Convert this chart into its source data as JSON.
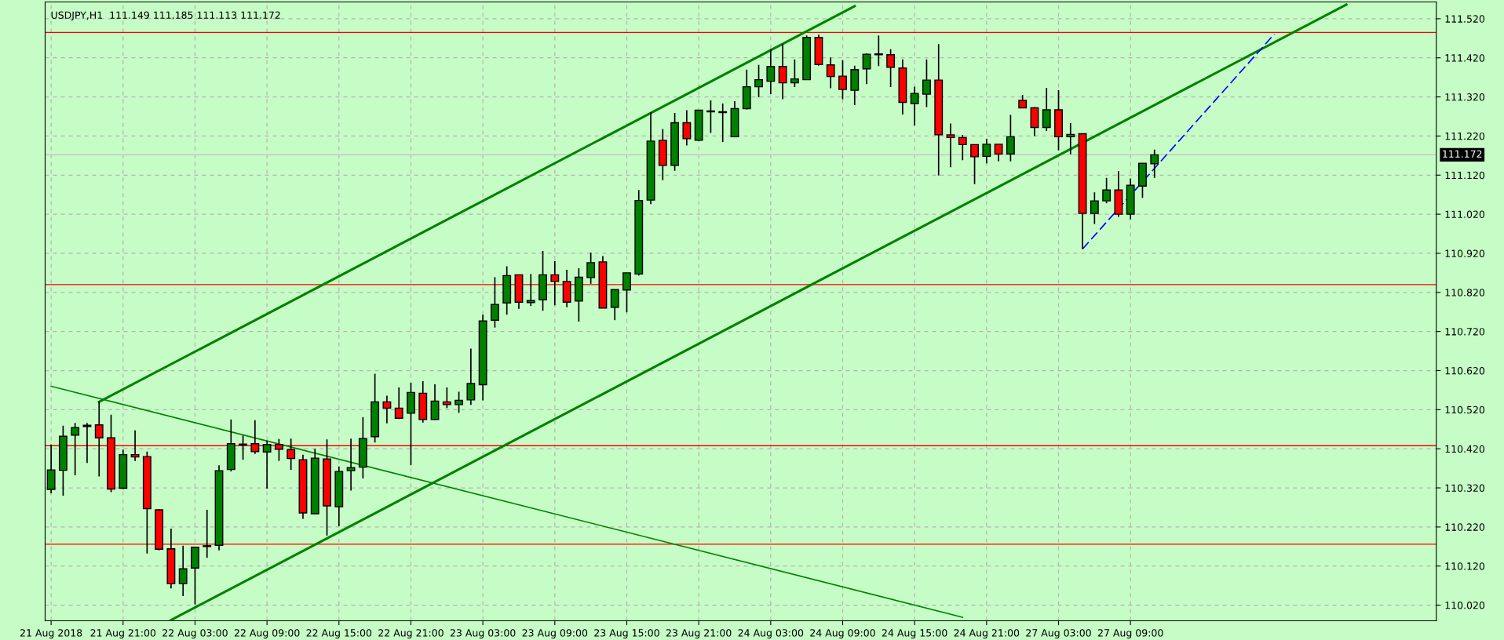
{
  "chart_data": {
    "type": "candlestick",
    "title": "USDJPY,H1  111.149 111.185 111.113 111.172",
    "categories": [
      "21 Aug 2018",
      null,
      null,
      null,
      null,
      null,
      "21 Aug 21:00",
      null,
      null,
      null,
      null,
      null,
      "22 Aug 03:00",
      null,
      null,
      null,
      null,
      null,
      "22 Aug 09:00",
      null,
      null,
      null,
      null,
      null,
      "22 Aug 15:00",
      null,
      null,
      null,
      null,
      null,
      "22 Aug 21:00",
      null,
      null,
      null,
      null,
      null,
      "23 Aug 03:00",
      null,
      null,
      null,
      null,
      null,
      "23 Aug 09:00",
      null,
      null,
      null,
      null,
      null,
      "23 Aug 15:00",
      null,
      null,
      null,
      null,
      null,
      "23 Aug 21:00",
      null,
      null,
      null,
      null,
      null,
      "24 Aug 03:00",
      null,
      null,
      null,
      null,
      null,
      "24 Aug 09:00",
      null,
      null,
      null,
      null,
      null,
      "24 Aug 15:00",
      null,
      null,
      null,
      null,
      null,
      "24 Aug 21:00",
      null,
      null,
      null,
      null,
      null,
      "27 Aug 03:00",
      null,
      null,
      null,
      null,
      null,
      "27 Aug 09:00",
      null,
      null,
      null,
      null,
      null,
      null,
      null,
      null,
      null,
      null,
      null,
      null,
      null,
      null,
      null,
      null,
      null,
      null,
      null,
      null,
      null,
      null,
      null,
      null,
      null
    ],
    "ohlc": [
      [
        110.316,
        110.431,
        110.306,
        110.366
      ],
      [
        110.365,
        110.479,
        110.3,
        110.452
      ],
      [
        110.455,
        110.486,
        110.352,
        110.474
      ],
      [
        110.477,
        110.486,
        110.384,
        110.48
      ],
      [
        110.481,
        110.54,
        110.349,
        110.448
      ],
      [
        110.448,
        110.507,
        110.309,
        110.317
      ],
      [
        110.319,
        110.418,
        110.317,
        110.405
      ],
      [
        110.405,
        110.467,
        110.389,
        110.399
      ],
      [
        110.4,
        110.413,
        110.152,
        110.267
      ],
      [
        110.264,
        110.266,
        110.16,
        110.163
      ],
      [
        110.164,
        110.216,
        110.063,
        110.075
      ],
      [
        110.075,
        110.172,
        110.043,
        110.113
      ],
      [
        110.115,
        110.168,
        110.022,
        110.168
      ],
      [
        110.17,
        110.264,
        110.141,
        110.172
      ],
      [
        110.173,
        110.378,
        110.16,
        110.364
      ],
      [
        110.367,
        110.495,
        110.362,
        110.433
      ],
      [
        110.43,
        110.454,
        110.392,
        110.432
      ],
      [
        110.433,
        110.493,
        110.407,
        110.413
      ],
      [
        110.412,
        110.441,
        110.318,
        110.431
      ],
      [
        110.431,
        110.445,
        110.389,
        110.419
      ],
      [
        110.418,
        110.446,
        110.366,
        110.395
      ],
      [
        110.392,
        110.405,
        110.241,
        110.256
      ],
      [
        110.254,
        110.42,
        110.253,
        110.396
      ],
      [
        110.394,
        110.444,
        110.198,
        110.274
      ],
      [
        110.272,
        110.375,
        110.222,
        110.362
      ],
      [
        110.364,
        110.446,
        110.313,
        110.372
      ],
      [
        110.373,
        110.501,
        110.344,
        110.446
      ],
      [
        110.451,
        110.612,
        110.436,
        110.54
      ],
      [
        110.54,
        110.556,
        110.485,
        110.524
      ],
      [
        110.524,
        110.577,
        110.496,
        110.498
      ],
      [
        110.511,
        110.589,
        110.378,
        110.564
      ],
      [
        110.562,
        110.593,
        110.487,
        110.495
      ],
      [
        110.495,
        110.585,
        110.493,
        110.542
      ],
      [
        110.54,
        110.577,
        110.524,
        110.533
      ],
      [
        110.533,
        110.566,
        110.512,
        110.544
      ],
      [
        110.545,
        110.676,
        110.532,
        110.587
      ],
      [
        110.584,
        110.763,
        110.544,
        110.747
      ],
      [
        110.749,
        110.859,
        110.73,
        110.789
      ],
      [
        110.793,
        110.887,
        110.763,
        110.863
      ],
      [
        110.865,
        110.865,
        110.778,
        110.795
      ],
      [
        110.794,
        110.867,
        110.785,
        110.799
      ],
      [
        110.801,
        110.926,
        110.773,
        110.865
      ],
      [
        110.865,
        110.9,
        110.787,
        110.848
      ],
      [
        110.848,
        110.878,
        110.782,
        110.795
      ],
      [
        110.798,
        110.882,
        110.745,
        110.859
      ],
      [
        110.858,
        110.922,
        110.842,
        110.896
      ],
      [
        110.898,
        110.913,
        110.78,
        110.78
      ],
      [
        110.782,
        110.827,
        110.749,
        110.827
      ],
      [
        110.826,
        110.87,
        110.769,
        110.87
      ],
      [
        110.867,
        111.082,
        110.863,
        111.055
      ],
      [
        111.056,
        111.281,
        111.046,
        111.207
      ],
      [
        111.209,
        111.238,
        111.107,
        111.145
      ],
      [
        111.145,
        111.279,
        111.131,
        111.254
      ],
      [
        111.254,
        111.286,
        111.196,
        111.213
      ],
      [
        111.209,
        111.286,
        111.207,
        111.286
      ],
      [
        111.282,
        111.311,
        111.228,
        111.284
      ],
      [
        111.28,
        111.303,
        111.205,
        111.282
      ],
      [
        111.218,
        111.309,
        111.218,
        111.29
      ],
      [
        111.29,
        111.39,
        111.288,
        111.346
      ],
      [
        111.346,
        111.402,
        111.319,
        111.364
      ],
      [
        111.36,
        111.442,
        111.327,
        111.398
      ],
      [
        111.398,
        111.455,
        111.314,
        111.356
      ],
      [
        111.356,
        111.416,
        111.345,
        111.366
      ],
      [
        111.364,
        111.477,
        111.364,
        111.472
      ],
      [
        111.472,
        111.479,
        111.4,
        111.403
      ],
      [
        111.402,
        111.421,
        111.342,
        111.372
      ],
      [
        111.373,
        111.414,
        111.314,
        111.339
      ],
      [
        111.337,
        111.4,
        111.299,
        111.39
      ],
      [
        111.392,
        111.431,
        111.353,
        111.429
      ],
      [
        111.428,
        111.477,
        111.399,
        111.43
      ],
      [
        111.428,
        111.442,
        111.345,
        111.396
      ],
      [
        111.394,
        111.416,
        111.275,
        111.306
      ],
      [
        111.303,
        111.346,
        111.247,
        111.329
      ],
      [
        111.327,
        111.416,
        111.294,
        111.363
      ],
      [
        111.363,
        111.455,
        111.119,
        111.223
      ],
      [
        111.223,
        111.252,
        111.14,
        111.216
      ],
      [
        111.216,
        111.223,
        111.158,
        111.198
      ],
      [
        111.198,
        111.198,
        111.097,
        111.167
      ],
      [
        111.168,
        111.213,
        111.15,
        111.199
      ],
      [
        111.199,
        111.199,
        111.155,
        111.174
      ],
      [
        111.174,
        111.274,
        111.155,
        111.218
      ],
      [
        111.311,
        111.325,
        111.292,
        111.292
      ],
      [
        111.292,
        111.294,
        111.22,
        111.242
      ],
      [
        111.242,
        111.343,
        111.233,
        111.287
      ],
      [
        111.287,
        111.337,
        111.183,
        111.218
      ],
      [
        111.218,
        111.253,
        111.173,
        111.224
      ],
      [
        111.226,
        111.226,
        110.931,
        111.022
      ],
      [
        111.022,
        111.076,
        110.995,
        111.054
      ],
      [
        111.054,
        111.113,
        111.048,
        111.082
      ],
      [
        111.082,
        111.13,
        111.013,
        111.02
      ],
      [
        111.02,
        111.111,
        111.007,
        111.094
      ],
      [
        111.092,
        111.15,
        111.062,
        111.15
      ],
      [
        111.149,
        111.185,
        111.113,
        111.172
      ],
      null,
      null,
      null,
      null,
      null,
      null,
      null,
      null,
      null,
      null,
      null,
      null,
      null,
      null,
      null,
      null,
      null,
      null,
      null,
      null,
      null,
      null,
      null
    ],
    "colors": [
      "#008000",
      "#008000",
      "#008000",
      "#008000",
      "#ff0000",
      "#ff0000",
      "#008000",
      "#ff0000",
      "#ff0000",
      "#ff0000",
      "#ff0000",
      "#008000",
      "#008000",
      "#008000",
      "#008000",
      "#008000",
      "#008000",
      "#ff0000",
      "#008000",
      "#ff0000",
      "#ff0000",
      "#ff0000",
      "#008000",
      "#ff0000",
      "#008000",
      "#008000",
      "#008000",
      "#008000",
      "#ff0000",
      "#ff0000",
      "#008000",
      "#ff0000",
      "#008000",
      "#ff0000",
      "#008000",
      "#008000",
      "#008000",
      "#008000",
      "#008000",
      "#ff0000",
      "#008000",
      "#008000",
      "#ff0000",
      "#ff0000",
      "#008000",
      "#008000",
      "#ff0000",
      "#008000",
      "#008000",
      "#008000",
      "#008000",
      "#ff0000",
      "#008000",
      "#ff0000",
      "#008000",
      "#008000",
      "#008000",
      "#008000",
      "#008000",
      "#008000",
      "#008000",
      "#ff0000",
      "#008000",
      "#008000",
      "#ff0000",
      "#ff0000",
      "#ff0000",
      "#008000",
      "#008000",
      "#008000",
      "#ff0000",
      "#ff0000",
      "#008000",
      "#008000",
      "#ff0000",
      "#ff0000",
      "#ff0000",
      "#ff0000",
      "#008000",
      "#ff0000",
      "#008000",
      "#ff0000",
      "#ff0000",
      "#008000",
      "#ff0000",
      "#008000",
      "#ff0000",
      "#008000",
      "#008000",
      "#ff0000",
      "#008000",
      "#008000",
      "#008000",
      null,
      null,
      null,
      null,
      null,
      null,
      null,
      null,
      null,
      null,
      null,
      null,
      null,
      null,
      null,
      null,
      null,
      null,
      null,
      null,
      null,
      null,
      null
    ],
    "series": [
      {
        "type": "line",
        "color": "#008000",
        "values": [
          null,
          null,
          null,
          null,
          110.54,
          null,
          null,
          null,
          null,
          null,
          null,
          null,
          null,
          null,
          null,
          null,
          null,
          null,
          null,
          null,
          null,
          null,
          null,
          null,
          null,
          null,
          null,
          null,
          null,
          null,
          null,
          null,
          null,
          null,
          null,
          null,
          null,
          null,
          null,
          null,
          null,
          null,
          null,
          null,
          null,
          null,
          null,
          null,
          null,
          null,
          null,
          null,
          null,
          null,
          null,
          null,
          null,
          null,
          null,
          null,
          null,
          null,
          null,
          null,
          null,
          null,
          null,
          111.552,
          null,
          null,
          null,
          null,
          null,
          null,
          null,
          null,
          null,
          null,
          null,
          null,
          null,
          null,
          null,
          null,
          null,
          null,
          null,
          null,
          null,
          null,
          null,
          null,
          null,
          null,
          null,
          null,
          null,
          null,
          null,
          null,
          null,
          null,
          null,
          null,
          null,
          null,
          null,
          null,
          null,
          null,
          null,
          null,
          null,
          null,
          null,
          null
        ]
      },
      {
        "type": "line",
        "color": "#008000",
        "values": [
          null,
          null,
          null,
          null,
          null,
          null,
          null,
          null,
          null,
          null,
          109.982,
          null,
          null,
          null,
          null,
          null,
          null,
          null,
          null,
          null,
          null,
          null,
          null,
          null,
          null,
          null,
          null,
          null,
          null,
          null,
          null,
          null,
          null,
          null,
          null,
          null,
          null,
          null,
          null,
          null,
          null,
          null,
          null,
          null,
          null,
          null,
          null,
          null,
          null,
          null,
          null,
          null,
          null,
          null,
          null,
          null,
          null,
          null,
          null,
          null,
          null,
          null,
          null,
          null,
          null,
          null,
          null,
          null,
          null,
          null,
          null,
          null,
          null,
          null,
          null,
          null,
          null,
          null,
          null,
          null,
          null,
          null,
          null,
          null,
          null,
          null,
          null,
          null,
          null,
          null,
          null,
          null,
          null,
          null,
          null,
          null,
          null,
          null,
          null,
          null,
          null,
          null,
          null,
          null,
          null,
          null,
          null,
          null,
          111.556,
          null,
          null,
          null,
          null,
          null,
          null,
          null
        ]
      },
      {
        "type": "line",
        "color": "#008000",
        "values": [
          110.58,
          null,
          null,
          null,
          null,
          null,
          null,
          null,
          null,
          null,
          null,
          null,
          null,
          null,
          null,
          null,
          null,
          null,
          null,
          null,
          null,
          null,
          null,
          null,
          null,
          null,
          null,
          null,
          null,
          null,
          null,
          null,
          null,
          null,
          null,
          null,
          null,
          null,
          null,
          null,
          null,
          null,
          null,
          null,
          null,
          null,
          null,
          null,
          null,
          null,
          null,
          null,
          null,
          null,
          null,
          null,
          null,
          null,
          null,
          null,
          null,
          null,
          null,
          null,
          null,
          null,
          null,
          null,
          null,
          null,
          null,
          null,
          null,
          null,
          null,
          null,
          109.989,
          null,
          null,
          null,
          null,
          null,
          null,
          null,
          null,
          null,
          null,
          null,
          null,
          null,
          null,
          null,
          null,
          null,
          null,
          null,
          null,
          null,
          null,
          null,
          null,
          null,
          null,
          null,
          null,
          null,
          null,
          null,
          null,
          null,
          null,
          null,
          null,
          null,
          null,
          null
        ]
      },
      {
        "type": "line",
        "color": "#0000ff",
        "line_style": "dashed",
        "values": [
          null,
          null,
          null,
          null,
          null,
          null,
          null,
          null,
          null,
          null,
          null,
          null,
          null,
          null,
          null,
          null,
          null,
          null,
          null,
          null,
          null,
          null,
          null,
          null,
          null,
          null,
          null,
          null,
          null,
          null,
          null,
          null,
          null,
          null,
          null,
          null,
          null,
          null,
          null,
          null,
          null,
          null,
          null,
          null,
          null,
          null,
          null,
          null,
          null,
          null,
          null,
          null,
          null,
          null,
          null,
          null,
          null,
          null,
          null,
          null,
          null,
          null,
          null,
          null,
          null,
          null,
          null,
          null,
          null,
          null,
          null,
          null,
          null,
          null,
          null,
          null,
          null,
          null,
          null,
          null,
          null,
          null,
          null,
          null,
          null,
          null,
          110.931,
          null,
          null,
          null,
          null,
          null,
          null,
          null,
          null,
          null,
          null,
          null,
          null,
          null,
          null,
          null,
          111.481,
          null,
          null,
          null,
          null,
          null,
          null,
          null,
          null,
          null,
          null,
          null,
          null,
          null
        ]
      }
    ],
    "ylim": [
      109.98,
      111.563
    ],
    "yticks": [
      {
        "value": 110.02,
        "label": "110.020"
      },
      {
        "value": 110.12,
        "label": "110.120"
      },
      {
        "value": 110.22,
        "label": "110.220"
      },
      {
        "value": 110.32,
        "label": "110.320"
      },
      {
        "value": 110.42,
        "label": "110.420"
      },
      {
        "value": 110.52,
        "label": "110.520"
      },
      {
        "value": 110.62,
        "label": "110.620"
      },
      {
        "value": 110.72,
        "label": "110.720"
      },
      {
        "value": 110.82,
        "label": "110.820"
      },
      {
        "value": 110.92,
        "label": "110.920"
      },
      {
        "value": 111.02,
        "label": "111.020"
      },
      {
        "value": 111.12,
        "label": "111.120"
      },
      {
        "value": 111.22,
        "label": "111.220"
      },
      {
        "value": 111.32,
        "label": "111.320"
      },
      {
        "value": 111.42,
        "label": "111.420"
      },
      {
        "value": 111.52,
        "label": "111.520"
      }
    ],
    "ref_lines": [
      {
        "axis": "y",
        "value": 111.485,
        "color": "#ff0000"
      },
      {
        "axis": "y",
        "value": 110.84,
        "color": "#ff0000"
      },
      {
        "axis": "y",
        "value": 110.428,
        "color": "#ff0000"
      },
      {
        "axis": "y",
        "value": 110.176,
        "color": "#ff0000"
      },
      {
        "axis": "y",
        "value": 111.172,
        "color": "#c0c0c0",
        "label": "111.172"
      }
    ],
    "grid": true
  }
}
